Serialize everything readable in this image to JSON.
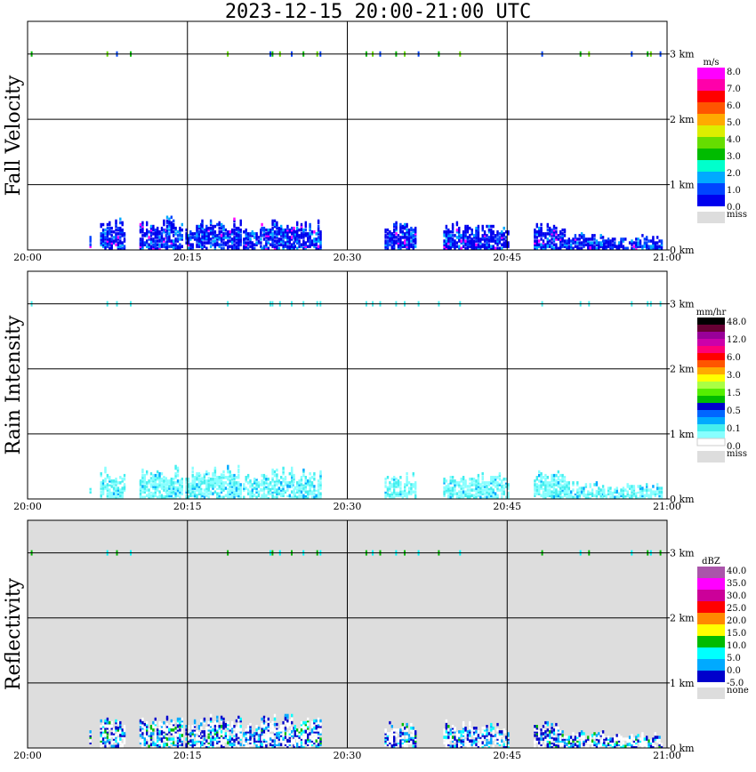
{
  "title": "2023-12-15   20:00-21:00 UTC",
  "colors": {
    "fall_velocity": [
      "#0000ee",
      "#0044ff",
      "#00aaff",
      "#00ffcc",
      "#00bb00",
      "#66dd00",
      "#ddee00",
      "#ffaa00",
      "#ff5500",
      "#ff0000",
      "#ff00aa",
      "#ff00ff"
    ],
    "rain_intensity": [
      "#ffffff",
      "#88ffff",
      "#44eeee",
      "#00aaff",
      "#0066ff",
      "#0000cc",
      "#00bb00",
      "#55ee00",
      "#aaff44",
      "#ffff00",
      "#ffaa00",
      "#ff5500",
      "#ff0000",
      "#ff0077",
      "#cc00aa",
      "#990099",
      "#660033",
      "#000000"
    ],
    "reflectivity": [
      "#0000cc",
      "#00aaff",
      "#00ffff",
      "#00bb00",
      "#ffff00",
      "#ff8800",
      "#ff0000",
      "#cc0099",
      "#ff00ff",
      "#aa55aa"
    ],
    "missing": "#dddddd"
  },
  "chart_data": [
    {
      "type": "heatmap",
      "name": "Fall Velocity",
      "ylabel": "Fall Velocity",
      "colorbar_unit": "m/s",
      "colorbar_labels": [
        "8.0",
        "7.0",
        "6.0",
        "5.0",
        "4.0",
        "3.0",
        "2.0",
        "1.0",
        "0.0"
      ],
      "missing_label": "miss",
      "x_ticks": [
        "20:00",
        "20:15",
        "20:30",
        "20:45",
        "21:00"
      ],
      "y_ticks": [
        "0 km",
        "1 km",
        "2 km",
        "3 km"
      ],
      "xlim": [
        "20:00",
        "21:00"
      ],
      "ylim": [
        0,
        3.5
      ],
      "grid": true
    },
    {
      "type": "heatmap",
      "name": "Rain Intensity",
      "ylabel": "Rain Intensity",
      "colorbar_unit": "mm/hr",
      "colorbar_labels": [
        "48.0",
        "12.0",
        "6.0",
        "3.0",
        "1.5",
        "0.5",
        "0.1",
        "0.0"
      ],
      "missing_label": "miss",
      "x_ticks": [
        "20:00",
        "20:15",
        "20:30",
        "20:45",
        "21:00"
      ],
      "y_ticks": [
        "0 km",
        "1 km",
        "2 km",
        "3 km"
      ],
      "xlim": [
        "20:00",
        "21:00"
      ],
      "ylim": [
        0,
        3.5
      ],
      "grid": true
    },
    {
      "type": "heatmap",
      "name": "Reflectivity",
      "ylabel": "Reflectivity",
      "colorbar_unit": "dBZ",
      "colorbar_labels": [
        "40.0",
        "35.0",
        "30.0",
        "25.0",
        "20.0",
        "15.0",
        "10.0",
        "5.0",
        "0.0",
        "-5.0"
      ],
      "missing_label": "none",
      "x_ticks": [
        "20:00",
        "20:15",
        "20:30",
        "20:45",
        "21:00"
      ],
      "y_ticks": [
        "0 km",
        "1 km",
        "2 km",
        "3 km"
      ],
      "xlim": [
        "20:00",
        "21:00"
      ],
      "ylim": [
        0,
        3.5
      ],
      "grid": true
    }
  ]
}
